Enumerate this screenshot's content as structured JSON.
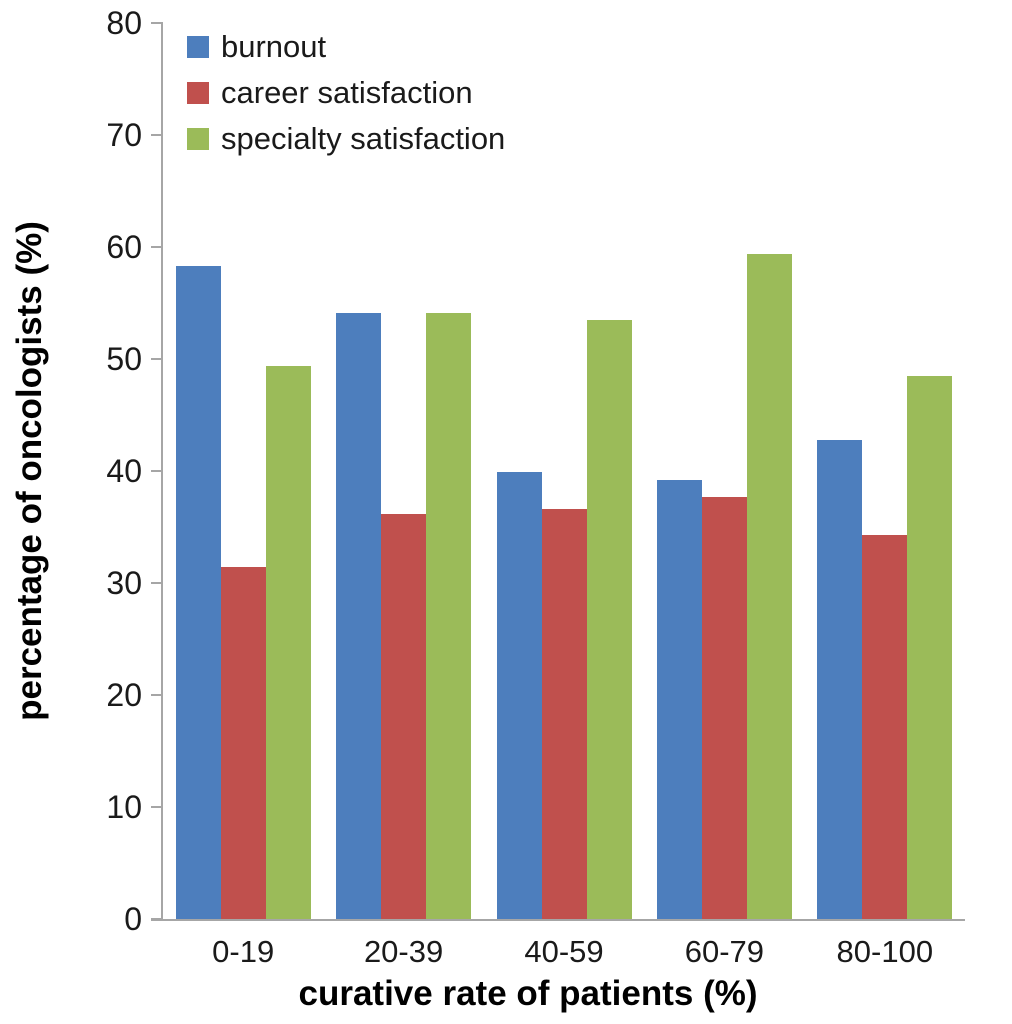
{
  "figure": {
    "background": "#ffffff",
    "axis_color": "#a6a6a6",
    "tick_text_color": "#1a1a1a",
    "title_text_color": "#000000"
  },
  "chart_data": {
    "type": "bar",
    "title": "",
    "xlabel": "curative rate of patients (%)",
    "ylabel": "percentage of oncologists (%)",
    "categories": [
      "0-19",
      "20-39",
      "40-59",
      "60-79",
      "80-100"
    ],
    "series": [
      {
        "name": "burnout",
        "color": "#4d7ebd",
        "values": [
          58.3,
          54.1,
          39.9,
          39.2,
          42.8
        ]
      },
      {
        "name": "career satisfaction",
        "color": "#c0504d",
        "values": [
          31.4,
          36.2,
          36.6,
          37.7,
          34.3
        ]
      },
      {
        "name": "specialty satisfaction",
        "color": "#9bbb59",
        "values": [
          49.4,
          54.1,
          53.5,
          59.4,
          48.5
        ]
      }
    ],
    "ylim": [
      0,
      80
    ],
    "yticks": [
      0,
      10,
      20,
      30,
      40,
      50,
      60,
      70,
      80
    ],
    "grid": false,
    "legend_position": "top-left-inside"
  }
}
